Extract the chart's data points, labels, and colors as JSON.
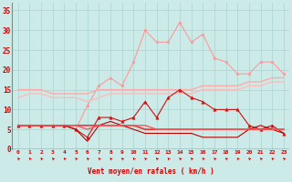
{
  "x": [
    0,
    1,
    2,
    3,
    4,
    5,
    6,
    7,
    8,
    9,
    10,
    11,
    12,
    13,
    14,
    15,
    16,
    17,
    18,
    19,
    20,
    21,
    22,
    23
  ],
  "bg_color": "#cceae7",
  "grid_color": "#aad4d0",
  "xlabel": "Vent moyen/en rafales ( km/h )",
  "xlabel_color": "#cc0000",
  "tick_color": "#cc0000",
  "ylim": [
    0,
    37
  ],
  "xlim": [
    -0.5,
    23.5
  ],
  "yticks": [
    0,
    5,
    10,
    15,
    20,
    25,
    30,
    35
  ],
  "lines": [
    {
      "name": "rafales_max",
      "color": "#ff9999",
      "lw": 0.8,
      "marker": "o",
      "markersize": 2.0,
      "values": [
        6,
        6,
        6,
        6,
        6,
        5,
        11,
        16,
        18,
        16,
        22,
        30,
        27,
        27,
        32,
        27,
        29,
        23,
        22,
        19,
        19,
        22,
        22,
        19
      ]
    },
    {
      "name": "moyenne_haute",
      "color": "#ffaaaa",
      "lw": 1.0,
      "marker": null,
      "markersize": 0,
      "values": [
        15,
        15,
        15,
        14,
        14,
        14,
        14,
        15,
        15,
        15,
        15,
        15,
        15,
        15,
        15,
        15,
        16,
        16,
        16,
        16,
        17,
        17,
        18,
        18
      ]
    },
    {
      "name": "moyenne_basse",
      "color": "#ffbbbb",
      "lw": 1.0,
      "marker": null,
      "markersize": 0,
      "values": [
        13,
        14,
        14,
        13,
        13,
        13,
        12,
        13,
        14,
        14,
        14,
        14,
        14,
        14,
        14,
        14,
        15,
        15,
        15,
        15,
        16,
        16,
        17,
        17
      ]
    },
    {
      "name": "vent_max",
      "color": "#cc1111",
      "lw": 0.8,
      "marker": "^",
      "markersize": 2.5,
      "values": [
        6,
        6,
        6,
        6,
        6,
        5,
        3,
        8,
        8,
        7,
        8,
        12,
        8,
        13,
        15,
        13,
        12,
        10,
        10,
        10,
        6,
        5,
        6,
        4
      ]
    },
    {
      "name": "vent_moyen_flat",
      "color": "#ee3333",
      "lw": 1.2,
      "marker": null,
      "markersize": 0,
      "values": [
        6,
        6,
        6,
        6,
        6,
        6,
        6,
        6,
        6,
        6,
        6,
        5,
        5,
        5,
        5,
        5,
        5,
        5,
        5,
        5,
        5,
        5,
        5,
        5
      ]
    },
    {
      "name": "vent_min_low",
      "color": "#bb0000",
      "lw": 0.8,
      "marker": null,
      "markersize": 0,
      "values": [
        6,
        6,
        6,
        6,
        6,
        5,
        2,
        6,
        7,
        6,
        5,
        4,
        4,
        4,
        4,
        4,
        3,
        3,
        3,
        3,
        5,
        6,
        5,
        4
      ]
    },
    {
      "name": "vent_min2",
      "color": "#ff5555",
      "lw": 1.0,
      "marker": null,
      "markersize": 0,
      "values": [
        6,
        6,
        6,
        6,
        6,
        6,
        5,
        6,
        6,
        6,
        6,
        6,
        5,
        5,
        5,
        5,
        5,
        5,
        5,
        5,
        5,
        5,
        5,
        5
      ]
    }
  ],
  "arrow_color": "#cc0000",
  "spine_color": "#888888"
}
